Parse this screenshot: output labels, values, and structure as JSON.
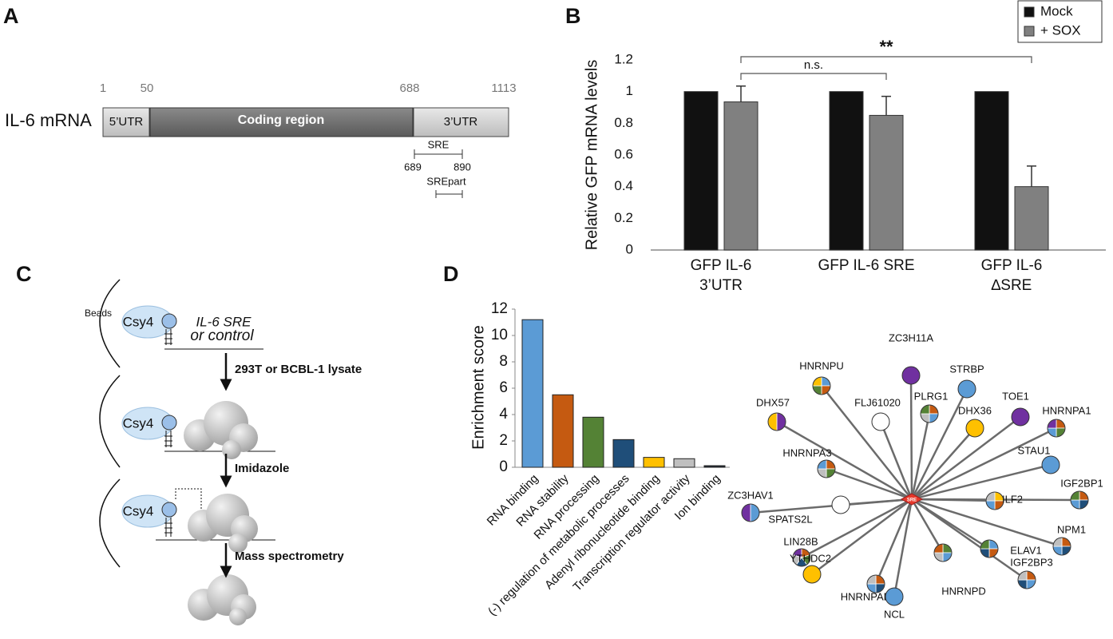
{
  "panel_a": {
    "label": "A",
    "molecule": "IL-6 mRNA",
    "regions": [
      "5’UTR",
      "Coding region",
      "3’UTR"
    ],
    "positions": [
      1,
      50,
      688,
      1113
    ],
    "sre": {
      "label": "SRE",
      "start": 689,
      "end": 890
    },
    "srepart": "SREpart"
  },
  "chart_data": [
    {
      "type": "bar",
      "panel_label": "B",
      "ylabel": "Relative GFP mRNA levels",
      "categories": [
        "GFP IL-6\n3’UTR",
        "GFP IL-6 SRE",
        "GFP IL-6\n∆SRE"
      ],
      "series": [
        {
          "name": "Mock",
          "color": "#111111",
          "values": [
            1,
            1,
            1
          ]
        },
        {
          "name": "+ SOX",
          "color": "#808080",
          "values": [
            0.935,
            0.85,
            0.4
          ],
          "errors": [
            0.1,
            0.12,
            0.13
          ]
        }
      ],
      "ylim": [
        0,
        1.2
      ],
      "yticks": [
        0,
        0.2,
        0.4,
        0.6,
        0.8,
        1,
        1.2
      ],
      "grid": false,
      "legend": "top-right",
      "annotations": [
        "n.s.",
        "**"
      ]
    },
    {
      "type": "bar",
      "panel_label": "D",
      "ylabel": "Enrichment score",
      "categories": [
        "RNA binding",
        "RNA stability",
        "RNA processing",
        "(-) regulation of metabolic processes",
        "Adenyl ribonucleotide binding",
        "Transcription regulator activity",
        "Ion binding"
      ],
      "values": [
        11.2,
        5.5,
        3.8,
        2.1,
        0.75,
        0.65,
        0.12
      ],
      "colors": [
        "#5b9bd5",
        "#c55a11",
        "#548235",
        "#1f4e79",
        "#ffc000",
        "#bfbfbf",
        "#222a35"
      ],
      "ylim": [
        0,
        12
      ],
      "yticks": [
        0,
        2,
        4,
        6,
        8,
        10,
        12
      ],
      "grid": false
    }
  ],
  "panel_c": {
    "label": "C",
    "beads": "Beads",
    "protein": "Csy4",
    "rna": [
      "IL-6 SRE",
      "or control"
    ],
    "steps": [
      "293T or BCBL-1 lysate",
      "Imidazole",
      "Mass spectrometry"
    ]
  },
  "network": {
    "center": "SRE",
    "nodes": [
      {
        "label": "HNRNPU",
        "colors": [
          "#5b9bd5",
          "#c55a11",
          "#548235",
          "#ffc000"
        ]
      },
      {
        "label": "ZC3H11A",
        "colors": [
          "#7030a0"
        ]
      },
      {
        "label": "STRBP",
        "colors": [
          "#5b9bd5"
        ]
      },
      {
        "label": "FLJ61020",
        "colors": [
          "#ffffff"
        ]
      },
      {
        "label": "PLRG1",
        "colors": [
          "#c55a11",
          "#5b9bd5",
          "#bfbfbf",
          "#548235"
        ]
      },
      {
        "label": "DHX36",
        "colors": [
          "#ffc000"
        ]
      },
      {
        "label": "TOE1",
        "colors": [
          "#7030a0"
        ]
      },
      {
        "label": "HNRNPA1",
        "colors": [
          "#c55a11",
          "#548235",
          "#5b9bd5",
          "#7030a0"
        ]
      },
      {
        "label": "DHX57",
        "colors": [
          "#7030a0",
          "#ffc000"
        ]
      },
      {
        "label": "HNRNPA3",
        "colors": [
          "#c55a11",
          "#548235",
          "#bfbfbf",
          "#5b9bd5"
        ]
      },
      {
        "label": "STAU1",
        "colors": [
          "#5b9bd5"
        ]
      },
      {
        "label": "IGF2BP1",
        "colors": [
          "#c55a11",
          "#1f4e79",
          "#5b9bd5",
          "#548235"
        ]
      },
      {
        "label": "ZC3HAV1",
        "colors": [
          "#5b9bd5",
          "#7030a0"
        ]
      },
      {
        "label": "SPATS2L",
        "colors": [
          "#ffffff"
        ]
      },
      {
        "label": "ILF2",
        "colors": [
          "#ffc000",
          "#c55a11",
          "#5b9bd5",
          "#bfbfbf"
        ]
      },
      {
        "label": "NPM1",
        "colors": [
          "#c55a11",
          "#1f4e79",
          "#5b9bd5",
          "#bfbfbf"
        ]
      },
      {
        "label": "LIN28B",
        "colors": [
          "#c55a11",
          "#548235",
          "#1f4e79",
          "#bfbfbf",
          "#7030a0"
        ]
      },
      {
        "label": "ELAV1",
        "colors": [
          "#5b9bd5",
          "#c55a11",
          "#1f4e79",
          "#548235"
        ]
      },
      {
        "label": "YTHDC2",
        "colors": [
          "#ffc000"
        ]
      },
      {
        "label": "HNRNPAB",
        "colors": [
          "#c55a11",
          "#1f4e79",
          "#5b9bd5",
          "#bfbfbf"
        ]
      },
      {
        "label": "NCL",
        "colors": [
          "#5b9bd5"
        ]
      },
      {
        "label": "HNRNPD",
        "colors": [
          "#548235",
          "#5b9bd5",
          "#bfbfbf",
          "#c55a11"
        ]
      },
      {
        "label": "IGF2BP3",
        "colors": [
          "#c55a11",
          "#5b9bd5",
          "#1f4e79",
          "#bfbfbf"
        ]
      }
    ]
  }
}
